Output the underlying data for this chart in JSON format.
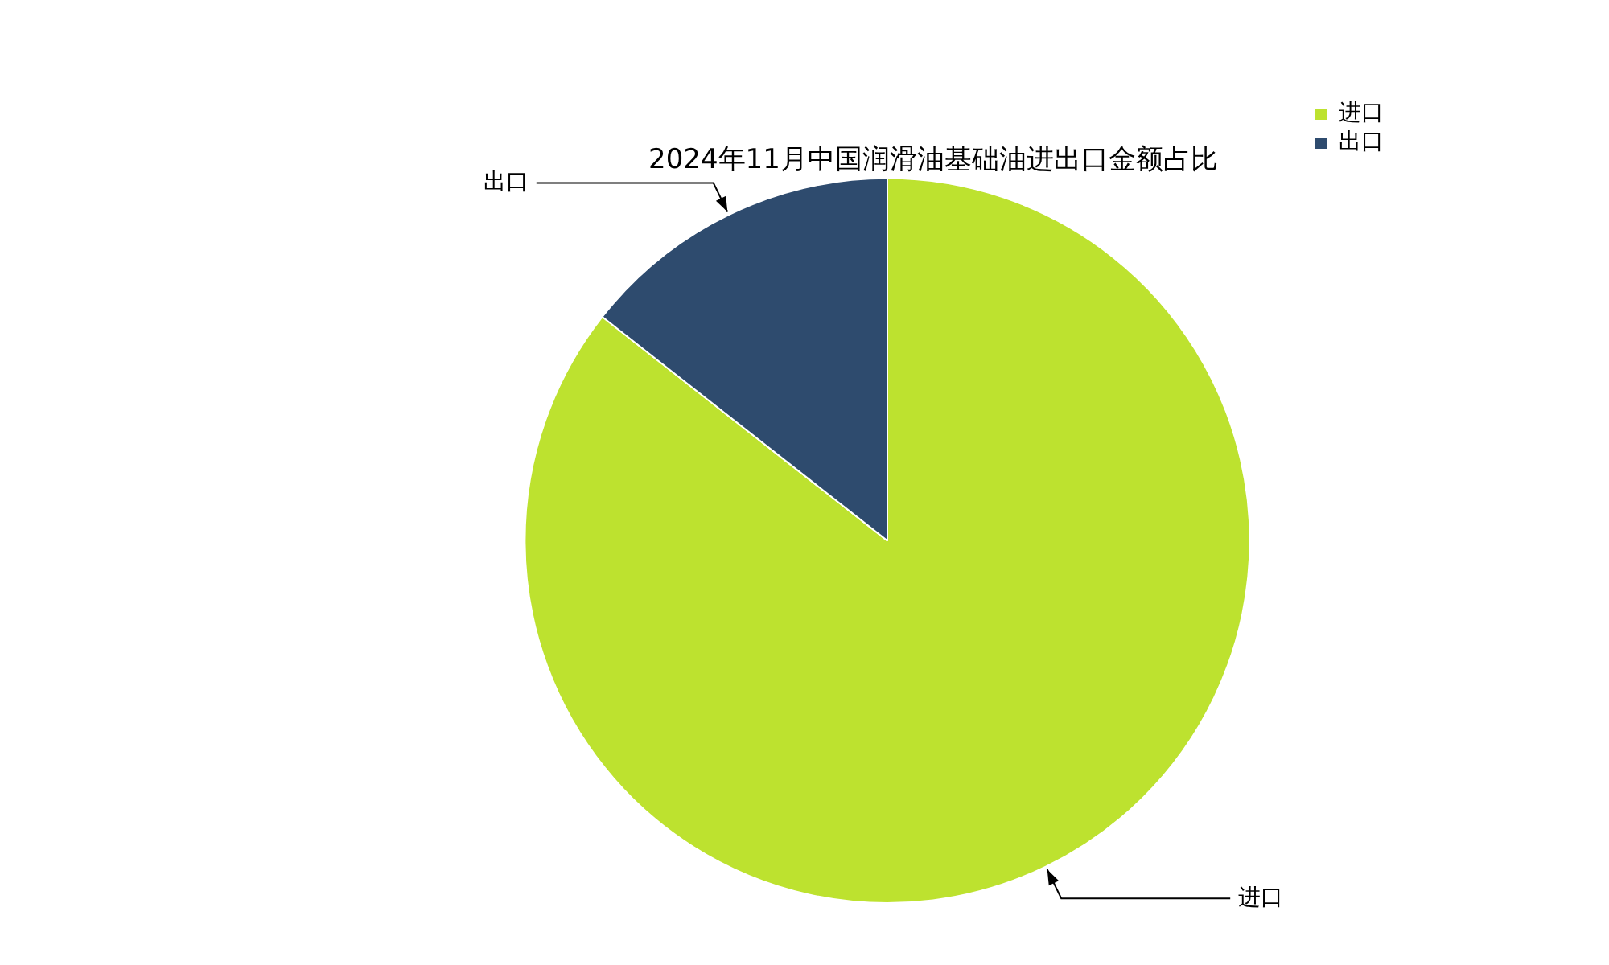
{
  "chart_data": {
    "type": "pie",
    "title": "2024年11月中国润滑油基础油进出口金额占比",
    "categories": [
      "进口",
      "出口"
    ],
    "values": [
      85.6,
      14.4
    ],
    "colors": [
      "#bde22f",
      "#2e4b6e"
    ],
    "legend": "top right"
  }
}
